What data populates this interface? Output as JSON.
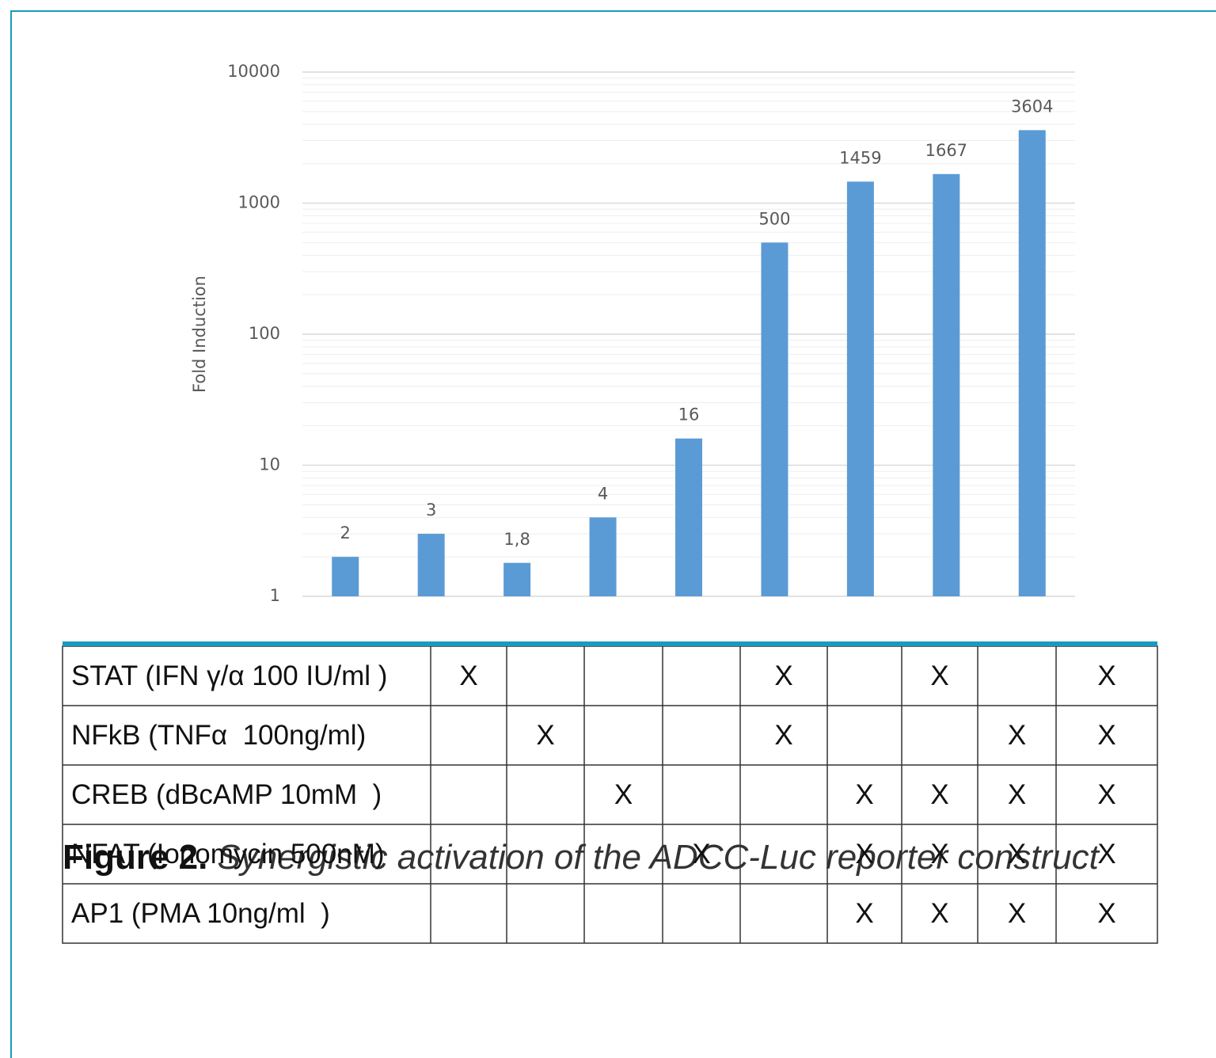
{
  "chart_data": {
    "type": "bar",
    "y_label": "Fold Induction",
    "categories": [
      null,
      null,
      null,
      null,
      null,
      null,
      null,
      null,
      null
    ],
    "values": [
      2,
      3,
      1.8,
      4,
      16,
      500,
      1459,
      1667,
      3604
    ],
    "value_labels": [
      "2",
      "3",
      "1,8",
      "4",
      "16",
      "500",
      "1459",
      "1667",
      "3604"
    ],
    "color": "#5b9bd5",
    "log_scale": true,
    "grid": true,
    "minor_grid": true,
    "ylim": [
      1,
      10000
    ],
    "yticks": [
      1,
      10,
      100,
      1000,
      10000
    ]
  },
  "table": {
    "header_color": "#1a9bbd",
    "rows": [
      {
        "label": "STAT (IFN γ/α 100 IU/ml )",
        "cells": [
          "X",
          null,
          null,
          null,
          "X",
          null,
          "X",
          null,
          "X"
        ]
      },
      {
        "label": "NFkB (TNFα  100ng/ml)",
        "cells": [
          null,
          "X",
          null,
          null,
          "X",
          null,
          null,
          "X",
          "X"
        ]
      },
      {
        "label": "CREB (dBcAMP 10mM  )",
        "cells": [
          null,
          null,
          "X",
          null,
          null,
          "X",
          "X",
          "X",
          "X"
        ]
      },
      {
        "label": "NFAT (Ionomycin 500nM)",
        "cells": [
          null,
          null,
          null,
          "X",
          null,
          "X",
          "X",
          "X",
          "X"
        ]
      },
      {
        "label": "AP1 (PMA 10ng/ml  )",
        "cells": [
          null,
          null,
          null,
          null,
          null,
          "X",
          "X",
          "X",
          "X"
        ]
      }
    ]
  },
  "caption": {
    "label": "Figure 2.",
    "text": "Synergistic activation of the ADCC-Luc reporter construct"
  }
}
